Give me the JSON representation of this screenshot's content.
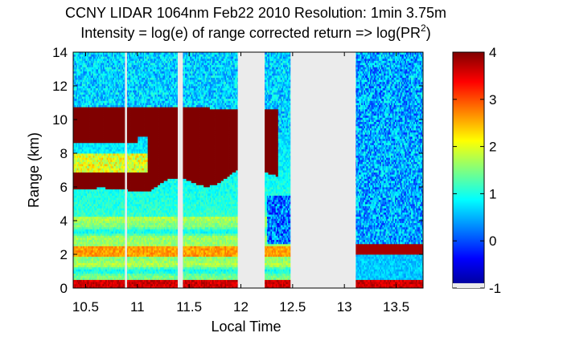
{
  "chart_data": {
    "type": "heatmap",
    "title": "CCNY LIDAR 1064nm Feb22 2010 Resolution: 1min 3.75m",
    "subtitle_main": "Intensity = log(e) of range corrected return => log(PR",
    "subtitle_sup": "2",
    "subtitle_end": ")",
    "xlabel": "Local Time",
    "ylabel": "Range (km)",
    "xlim": [
      10.38,
      13.76
    ],
    "ylim": [
      0,
      14
    ],
    "xticks": [
      "10.5",
      "11",
      "11.5",
      "12",
      "12.5",
      "13",
      "13.5"
    ],
    "xtick_values": [
      10.5,
      11,
      11.5,
      12,
      12.5,
      13,
      13.5
    ],
    "yticks": [
      "0",
      "2",
      "4",
      "6",
      "8",
      "10",
      "12",
      "14"
    ],
    "ytick_values": [
      0,
      2,
      4,
      6,
      8,
      10,
      12,
      14
    ],
    "colorbar": {
      "range": [
        -1,
        4
      ],
      "ticks": [
        "-1",
        "0",
        "1",
        "2",
        "3",
        "4"
      ],
      "tick_values": [
        -1,
        0,
        1,
        2,
        3,
        4
      ],
      "colormap": "jet"
    },
    "data_gaps_local_time": [
      [
        10.88,
        10.9
      ],
      [
        11.39,
        11.44
      ],
      [
        11.97,
        12.23
      ],
      [
        12.48,
        13.11
      ]
    ],
    "features": {
      "cloud_layer_km": [
        [
          5.5,
          10.7
        ]
      ],
      "boundary_layer_top_km": 2.1,
      "surface_return_km": 0.3
    }
  }
}
